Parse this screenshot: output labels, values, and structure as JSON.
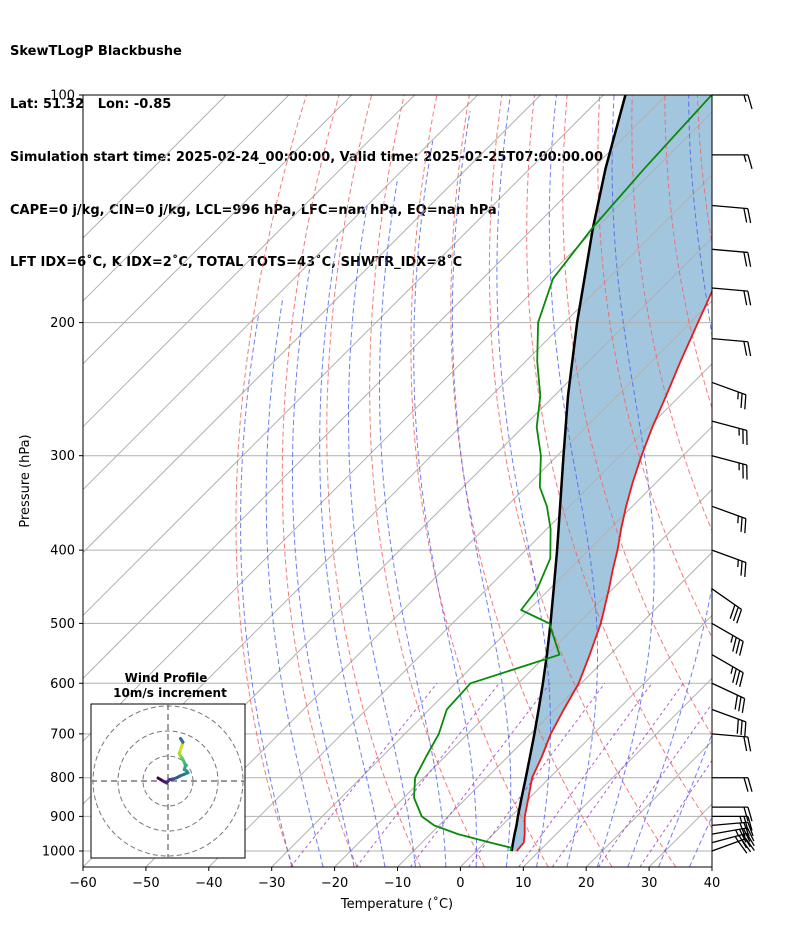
{
  "header": {
    "line1": "SkewTLogP Blackbushe",
    "line2": "Lat: 51.32   Lon: -0.85",
    "line3": "Simulation start time: 2025-02-24_00:00:00, Valid time: 2025-02-25T07:00:00.00",
    "line4": "CAPE=0 j/kg, CIN=0 j/kg, LCL=996 hPa, LFC=nan hPa, EQ=nan hPa",
    "line5": "LFT IDX=6˚C, K IDX=2˚C, TOTAL TOTS=43˚C, SHWTR_IDX=8˚C"
  },
  "chart_data": {
    "type": "line",
    "subtype": "skew-T log-P",
    "xlabel": "Temperature (˚C)",
    "ylabel": "Pressure (hPa)",
    "xlim": [
      -60,
      40
    ],
    "ylim_hpa": [
      1050,
      100
    ],
    "y_scale": "log",
    "x_ticks": [
      "−60",
      "−50",
      "−40",
      "−30",
      "−20",
      "−10",
      "0",
      "10",
      "20",
      "30",
      "40"
    ],
    "x_tick_values": [
      -60,
      -50,
      -40,
      -30,
      -20,
      -10,
      0,
      10,
      20,
      30,
      40
    ],
    "y_ticks": [
      "100",
      "200",
      "300",
      "400",
      "500",
      "600",
      "700",
      "800",
      "900",
      "1000"
    ],
    "y_tick_values": [
      100,
      200,
      300,
      400,
      500,
      600,
      700,
      800,
      900,
      1000
    ],
    "grid": true,
    "colors": {
      "temperature": "#e81a1a",
      "dewpoint": "#0a8a0a",
      "parcel": "#000000",
      "cin_fill": "#a3c6df",
      "dry_adiabat": "#f06464",
      "moist_adiabat": "#4a5ef0",
      "mixing_ratio": "#9a35c2",
      "isotherm": "#b0b0b0"
    },
    "series": [
      {
        "key": "temperature",
        "points": [
          [
            1000,
            6.4
          ],
          [
            975,
            6.2
          ],
          [
            950,
            5.0
          ],
          [
            925,
            3.6
          ],
          [
            900,
            2.2
          ],
          [
            850,
            -0.2
          ],
          [
            800,
            -2.8
          ],
          [
            750,
            -4.6
          ],
          [
            700,
            -6.8
          ],
          [
            650,
            -8.6
          ],
          [
            600,
            -10.4
          ],
          [
            550,
            -13.2
          ],
          [
            500,
            -16.4
          ],
          [
            450,
            -20.6
          ],
          [
            425,
            -23.0
          ],
          [
            400,
            -25.4
          ],
          [
            375,
            -28.2
          ],
          [
            350,
            -31.0
          ],
          [
            325,
            -33.8
          ],
          [
            300,
            -36.6
          ],
          [
            275,
            -39.4
          ],
          [
            250,
            -42.2
          ],
          [
            225,
            -45.4
          ],
          [
            200,
            -48.8
          ],
          [
            175,
            -52.6
          ],
          [
            150,
            -56.8
          ],
          [
            125,
            -60.6
          ],
          [
            100,
            -64.4
          ]
        ]
      },
      {
        "key": "dewpoint",
        "points": [
          [
            1000,
            5.4
          ],
          [
            990,
            5.0
          ],
          [
            975,
            1.0
          ],
          [
            950,
            -5.6
          ],
          [
            925,
            -10.8
          ],
          [
            900,
            -14.2
          ],
          [
            850,
            -18.4
          ],
          [
            800,
            -21.4
          ],
          [
            750,
            -23.0
          ],
          [
            700,
            -24.6
          ],
          [
            650,
            -27.2
          ],
          [
            600,
            -27.6
          ],
          [
            550,
            -18.0
          ],
          [
            500,
            -24.6
          ],
          [
            480,
            -31.2
          ],
          [
            450,
            -32.0
          ],
          [
            410,
            -34.8
          ],
          [
            375,
            -39.4
          ],
          [
            350,
            -43.6
          ],
          [
            330,
            -47.8
          ],
          [
            300,
            -52.6
          ],
          [
            275,
            -57.8
          ],
          [
            250,
            -62.2
          ],
          [
            225,
            -68.2
          ],
          [
            200,
            -74.2
          ],
          [
            175,
            -78.8
          ],
          [
            150,
            -80.6
          ],
          [
            125,
            -81.8
          ],
          [
            100,
            -82.8
          ]
        ]
      },
      {
        "key": "parcel",
        "points": [
          [
            1000,
            5.6
          ],
          [
            975,
            4.5
          ],
          [
            950,
            3.4
          ],
          [
            925,
            2.3
          ],
          [
            900,
            1.1
          ],
          [
            850,
            -1.3
          ],
          [
            800,
            -3.8
          ],
          [
            750,
            -6.5
          ],
          [
            700,
            -9.4
          ],
          [
            650,
            -12.6
          ],
          [
            600,
            -16.1
          ],
          [
            550,
            -20.0
          ],
          [
            500,
            -24.4
          ],
          [
            450,
            -29.4
          ],
          [
            400,
            -35.0
          ],
          [
            350,
            -41.5
          ],
          [
            300,
            -49.0
          ],
          [
            250,
            -57.8
          ],
          [
            200,
            -68.0
          ],
          [
            150,
            -80.5
          ],
          [
            125,
            -88.0
          ],
          [
            100,
            -96.5
          ]
        ]
      }
    ],
    "wind_barbs": [
      {
        "p": 1000,
        "dir": 250,
        "spd": 30
      },
      {
        "p": 975,
        "dir": 255,
        "spd": 35
      },
      {
        "p": 950,
        "dir": 260,
        "spd": 35
      },
      {
        "p": 925,
        "dir": 265,
        "spd": 30
      },
      {
        "p": 900,
        "dir": 270,
        "spd": 25
      },
      {
        "p": 875,
        "dir": 270,
        "spd": 20
      },
      {
        "p": 800,
        "dir": 270,
        "spd": 20
      },
      {
        "p": 700,
        "dir": 275,
        "spd": 20
      },
      {
        "p": 650,
        "dir": 290,
        "spd": 30
      },
      {
        "p": 600,
        "dir": 295,
        "spd": 30
      },
      {
        "p": 550,
        "dir": 300,
        "spd": 35
      },
      {
        "p": 500,
        "dir": 300,
        "spd": 35
      },
      {
        "p": 450,
        "dir": 305,
        "spd": 30
      },
      {
        "p": 400,
        "dir": 290,
        "spd": 25
      },
      {
        "p": 350,
        "dir": 290,
        "spd": 25
      },
      {
        "p": 300,
        "dir": 285,
        "spd": 25
      },
      {
        "p": 270,
        "dir": 285,
        "spd": 25
      },
      {
        "p": 240,
        "dir": 290,
        "spd": 25
      },
      {
        "p": 210,
        "dir": 275,
        "spd": 20
      },
      {
        "p": 180,
        "dir": 275,
        "spd": 20
      },
      {
        "p": 160,
        "dir": 275,
        "spd": 20
      },
      {
        "p": 140,
        "dir": 275,
        "spd": 20
      },
      {
        "p": 120,
        "dir": 270,
        "spd": 15
      },
      {
        "p": 100,
        "dir": 270,
        "spd": 15
      }
    ],
    "hodograph": {
      "title": "Wind Profile",
      "subtitle": "10m/s increment",
      "ring_increment_ms": 10,
      "rings": 3,
      "points_uv": [
        [
          -4.0,
          1.2
        ],
        [
          -2.0,
          0.0
        ],
        [
          -0.5,
          -0.8
        ],
        [
          0.5,
          0.5
        ],
        [
          2.0,
          0.8
        ],
        [
          3.5,
          1.3
        ],
        [
          5.0,
          2.1
        ],
        [
          6.5,
          2.7
        ],
        [
          8.0,
          3.3
        ],
        [
          7.5,
          4.0
        ],
        [
          6.5,
          4.6
        ],
        [
          7.0,
          6.0
        ],
        [
          6.5,
          7.5
        ],
        [
          5.8,
          9.0
        ],
        [
          5.0,
          10.0
        ],
        [
          4.5,
          11.0
        ],
        [
          5.0,
          12.5
        ],
        [
          5.5,
          14.0
        ],
        [
          6.0,
          15.5
        ],
        [
          5.0,
          17.0
        ]
      ],
      "point_colors": [
        "#440154",
        "#481769",
        "#472a7a",
        "#433d84",
        "#3d4e8a",
        "#355e8d",
        "#2e6d8e",
        "#297b8e",
        "#23898e",
        "#1f978b",
        "#21a585",
        "#2eb37c",
        "#46c06f",
        "#65cb5e",
        "#89d548",
        "#b0dd2f",
        "#d8e219",
        "#c2df23",
        "#31688e",
        "#26828e"
      ]
    }
  }
}
